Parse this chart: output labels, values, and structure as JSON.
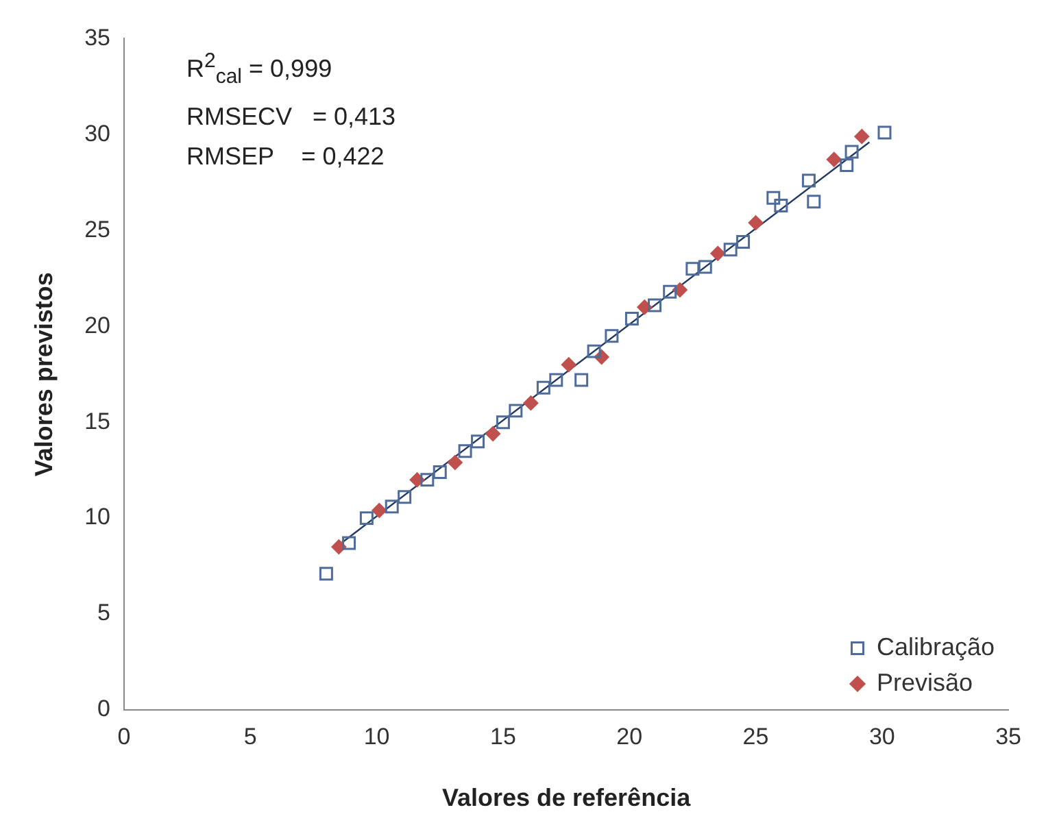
{
  "chart_data": {
    "type": "scatter",
    "xlabel": "Valores de referência",
    "ylabel": "Valores previstos",
    "xlim": [
      0,
      35
    ],
    "xticks": [
      0,
      5,
      10,
      15,
      20,
      25,
      30,
      35
    ],
    "ylim": [
      0,
      35
    ],
    "yticks": [
      0,
      5,
      10,
      15,
      20,
      25,
      30,
      35
    ],
    "grid": false,
    "legend": "bottom right",
    "annotations": [
      "R$^{2}$$_{cal}$ = 0,999",
      "RMSECV   = 0,413",
      "RMSEP    = 0,422"
    ],
    "series": [
      {
        "name": "Calibração",
        "color": "#4f6b99",
        "marker": "square",
        "x": [
          8.0,
          8.9,
          9.6,
          10.6,
          11.1,
          12.0,
          12.5,
          13.5,
          14.0,
          15.0,
          15.5,
          16.6,
          17.1,
          18.1,
          18.6,
          19.3,
          20.1,
          21.0,
          21.6,
          22.5,
          23.0,
          24.0,
          24.5,
          25.7,
          26.0,
          27.1,
          27.3,
          28.6,
          28.8,
          30.1
        ],
        "values": [
          7.1,
          8.7,
          10.0,
          10.6,
          11.1,
          12.0,
          12.4,
          13.5,
          14.0,
          15.0,
          15.6,
          16.8,
          17.2,
          17.2,
          18.7,
          19.5,
          20.4,
          21.1,
          21.8,
          23.0,
          23.1,
          24.0,
          24.4,
          26.7,
          26.3,
          27.6,
          26.5,
          28.4,
          29.1,
          30.1
        ]
      },
      {
        "name": "Previsão",
        "color": "#c0504d",
        "marker": "diamond",
        "x": [
          8.5,
          10.1,
          11.6,
          13.1,
          14.6,
          16.1,
          17.6,
          18.9,
          20.6,
          22.0,
          23.5,
          25.0,
          28.1,
          29.2
        ],
        "values": [
          8.5,
          10.4,
          12.0,
          12.9,
          14.4,
          16.0,
          18.0,
          18.4,
          21.0,
          21.9,
          23.8,
          25.4,
          28.7,
          29.9
        ]
      },
      {
        "type": "line",
        "color": "#1f3864",
        "marker": "none",
        "x": [
          8.5,
          29.5
        ],
        "values": [
          8.6,
          29.6
        ]
      }
    ]
  }
}
